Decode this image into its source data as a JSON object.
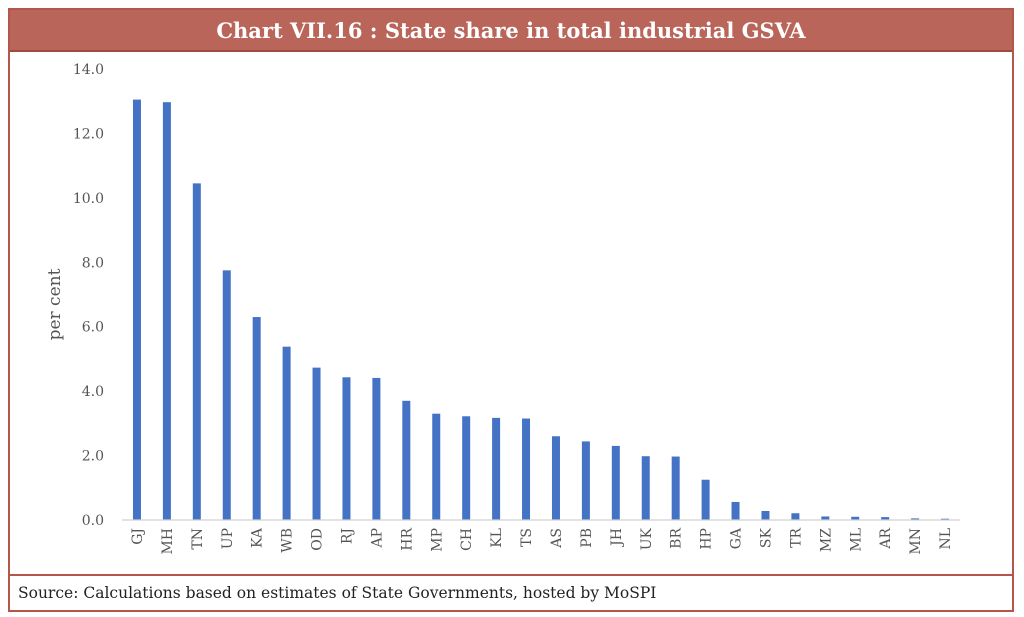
{
  "title": "Chart VII.16 : State share in total industrial GSVA",
  "source": "Source: Calculations based on estimates of State Governments, hosted by MoSPI",
  "colors": {
    "bar": "#4472c4",
    "title_bg": "#b9655a",
    "border": "#b5564a",
    "axis": "#d0d0d0"
  },
  "chart_data": {
    "type": "bar",
    "title": "Chart VII.16 : State share in total industrial GSVA",
    "xlabel": "",
    "ylabel": "per cent",
    "ylim": [
      0,
      14
    ],
    "yticks": [
      "0.0",
      "2.0",
      "4.0",
      "6.0",
      "8.0",
      "10.0",
      "12.0",
      "14.0"
    ],
    "grid": false,
    "categories": [
      "GJ",
      "MH",
      "TN",
      "UP",
      "KA",
      "WB",
      "OD",
      "RJ",
      "AP",
      "HR",
      "MP",
      "CH",
      "KL",
      "TS",
      "AS",
      "PB",
      "JH",
      "UK",
      "BR",
      "HP",
      "GA",
      "SK",
      "TR",
      "MZ",
      "ML",
      "AR",
      "MN",
      "NL"
    ],
    "values": [
      13.05,
      12.97,
      10.45,
      7.75,
      6.3,
      5.38,
      4.73,
      4.43,
      4.41,
      3.7,
      3.3,
      3.22,
      3.17,
      3.15,
      2.6,
      2.44,
      2.3,
      1.98,
      1.97,
      1.25,
      0.56,
      0.28,
      0.21,
      0.11,
      0.1,
      0.09,
      0.05,
      0.04
    ]
  }
}
